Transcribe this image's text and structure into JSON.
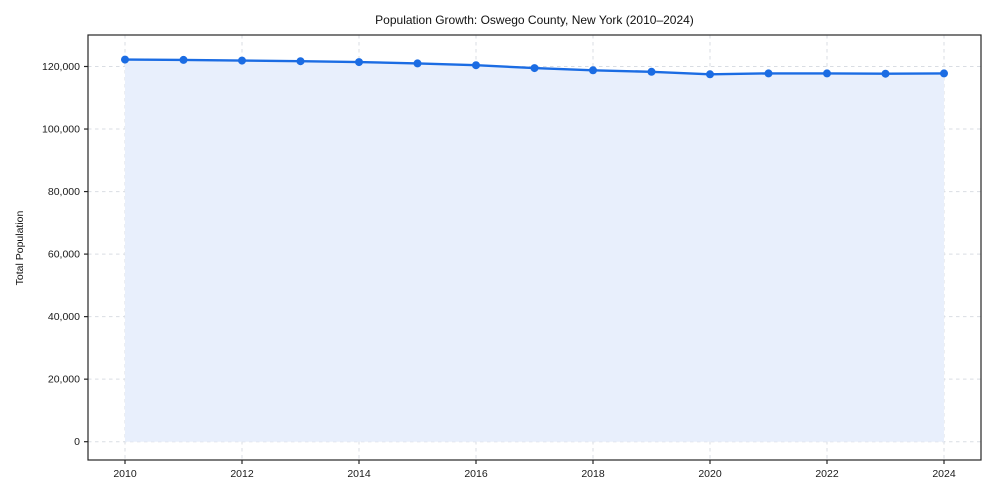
{
  "chart_data": {
    "type": "line",
    "title": "Population Growth: Oswego County, New York (2010–2024)",
    "xlabel": "",
    "ylabel": "Total Population",
    "series_name": "Total Population",
    "x": [
      2010,
      2011,
      2012,
      2013,
      2014,
      2015,
      2016,
      2017,
      2018,
      2019,
      2020,
      2021,
      2022,
      2023,
      2024
    ],
    "values": [
      122200,
      122100,
      121900,
      121700,
      121400,
      121000,
      120400,
      119500,
      118800,
      118300,
      117500,
      117800,
      117800,
      117700,
      117800
    ],
    "xlim": [
      2009.3,
      2024.7
    ],
    "ylim": [
      -6000,
      130000
    ],
    "xticks": {
      "values": [
        2010,
        2012,
        2014,
        2016,
        2018,
        2020,
        2022,
        2024
      ],
      "labels": [
        "2010",
        "2012",
        "2014",
        "2016",
        "2018",
        "2020",
        "2022",
        "2024"
      ]
    },
    "yticks": {
      "values": [
        0,
        20000,
        40000,
        60000,
        80000,
        100000,
        120000
      ],
      "labels": [
        "0",
        "20,000",
        "40,000",
        "60,000",
        "80,000",
        "100,000",
        "120,000"
      ]
    },
    "grid": "dashed, both axes",
    "legend": "none",
    "marker": "circle",
    "fill_to_zero": true,
    "colors": {
      "line": "#1b6ce3",
      "fill": "#e8effc",
      "grid": "#d9dde3",
      "axis": "#262626",
      "text": "#1a1a1a",
      "background": "#ffffff"
    }
  }
}
